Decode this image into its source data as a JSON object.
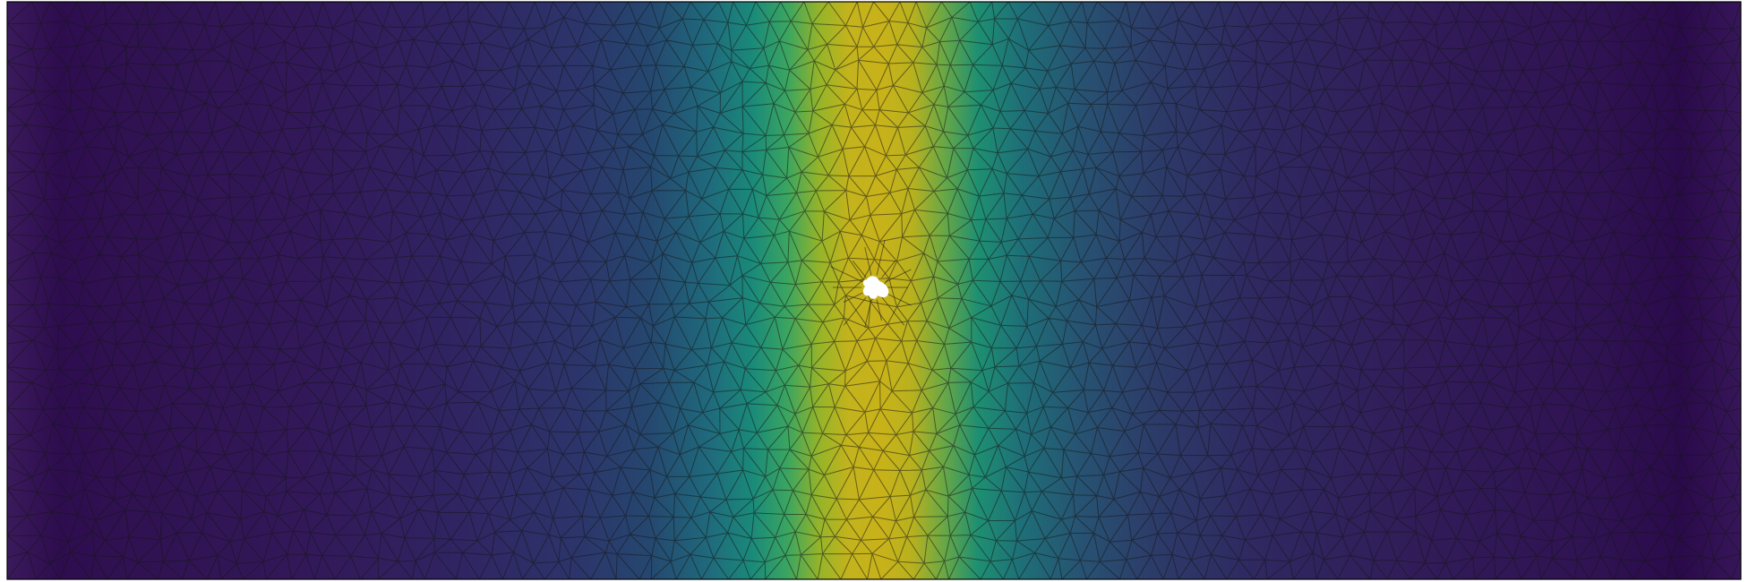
{
  "plot": {
    "colormap": "viridis",
    "colors": [
      "#440154",
      "#482878",
      "#3e4989",
      "#31688e",
      "#26828e",
      "#1f9e89",
      "#35b779",
      "#6ece58",
      "#b5de2b",
      "#c9b81a"
    ],
    "mesh_edge_color": "#1a1a1a",
    "frame_color": "#000000",
    "hole_color": "#ffffff"
  }
}
